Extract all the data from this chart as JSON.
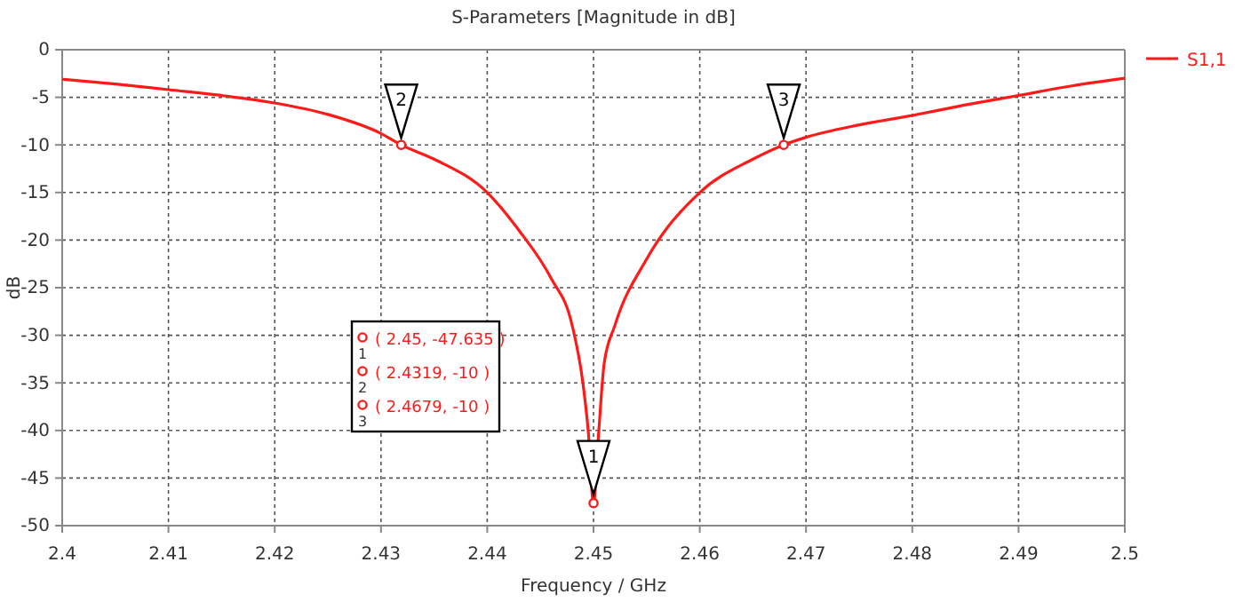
{
  "chart_data": {
    "type": "line",
    "title": "S-Parameters [Magnitude in dB]",
    "xlabel": "Frequency / GHz",
    "ylabel": "dB",
    "x": [
      2.4,
      2.405,
      2.41,
      2.415,
      2.42,
      2.425,
      2.43,
      2.4319,
      2.435,
      2.44,
      2.443,
      2.446,
      2.448,
      2.449,
      2.4495,
      2.45,
      2.4505,
      2.451,
      2.452,
      2.455,
      2.46,
      2.465,
      2.4679,
      2.47,
      2.475,
      2.48,
      2.485,
      2.49,
      2.495,
      2.5
    ],
    "series": [
      {
        "name": "S1,1",
        "color": "#ff1a1a",
        "values": [
          -3.1,
          -3.6,
          -4.2,
          -4.8,
          -5.6,
          -6.8,
          -8.8,
          -10,
          -11.5,
          -15,
          -19,
          -24,
          -29,
          -35,
          -40,
          -47.635,
          -40,
          -33,
          -29,
          -22,
          -15,
          -11.5,
          -10,
          -9.2,
          -7.9,
          -6.9,
          -5.8,
          -4.8,
          -3.8,
          -3.0
        ]
      }
    ],
    "xlim": [
      2.4,
      2.5
    ],
    "xticks": [
      2.4,
      2.41,
      2.42,
      2.43,
      2.44,
      2.45,
      2.46,
      2.47,
      2.48,
      2.49,
      2.5
    ],
    "ylim": [
      -50,
      0
    ],
    "yticks": [
      -50,
      -45,
      -40,
      -35,
      -30,
      -25,
      -20,
      -15,
      -10,
      -5,
      0
    ],
    "grid": true,
    "legend": "right",
    "line_style": "solid",
    "marker": "none",
    "annotations": [
      {
        "text": "1",
        "x": 2.45,
        "y": -47.635
      },
      {
        "text": "2",
        "x": 2.4319,
        "y": -10
      },
      {
        "text": "3",
        "x": 2.4679,
        "y": -10
      },
      "( 2.45, -47.635 )",
      "( 2.4319, -10 )",
      "( 2.4679, -10 )"
    ]
  }
}
